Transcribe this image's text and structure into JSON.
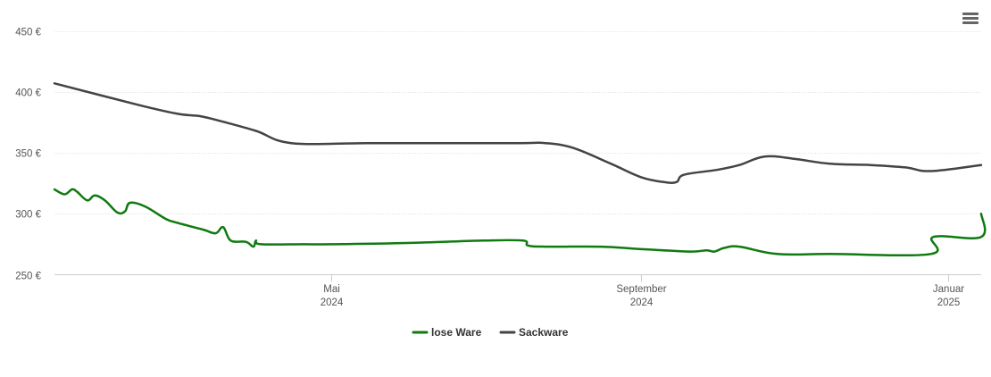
{
  "chart_data": {
    "type": "line",
    "y_tick_labels": [
      "450 €",
      "400 €",
      "350 €",
      "300 €",
      "250 €"
    ],
    "y_tick_values": [
      450,
      400,
      350,
      300,
      250
    ],
    "ylim": [
      250,
      460
    ],
    "xlim": [
      "2024-01-12",
      "2025-01-14"
    ],
    "x_ticks": [
      {
        "date": "2024-05-01",
        "month": "Mai",
        "year": "2024"
      },
      {
        "date": "2024-09-01",
        "month": "September",
        "year": "2024"
      },
      {
        "date": "2025-01-01",
        "month": "Januar",
        "year": "2025"
      }
    ],
    "legend_position": "bottom-center",
    "grid": true,
    "series": [
      {
        "name": "lose Ware",
        "color": "#0f7a10",
        "points": [
          [
            "2024-01-12",
            320
          ],
          [
            "2024-01-16",
            316
          ],
          [
            "2024-01-19",
            320
          ],
          [
            "2024-01-21",
            318
          ],
          [
            "2024-01-25",
            311
          ],
          [
            "2024-01-28",
            315
          ],
          [
            "2024-02-01",
            311
          ],
          [
            "2024-02-06",
            301
          ],
          [
            "2024-02-09",
            302
          ],
          [
            "2024-02-11",
            309
          ],
          [
            "2024-02-17",
            306
          ],
          [
            "2024-02-25",
            296
          ],
          [
            "2024-02-29",
            293
          ],
          [
            "2024-03-11",
            287
          ],
          [
            "2024-03-16",
            284
          ],
          [
            "2024-03-19",
            289
          ],
          [
            "2024-03-22",
            278
          ],
          [
            "2024-03-28",
            277
          ],
          [
            "2024-03-31",
            273
          ],
          [
            "2024-04-01",
            278
          ],
          [
            "2024-04-03",
            275
          ],
          [
            "2024-04-20",
            275
          ],
          [
            "2024-05-01",
            275
          ],
          [
            "2024-05-31",
            276
          ],
          [
            "2024-06-30",
            278
          ],
          [
            "2024-07-16",
            278
          ],
          [
            "2024-07-18",
            274
          ],
          [
            "2024-07-25",
            273
          ],
          [
            "2024-08-16",
            273
          ],
          [
            "2024-09-01",
            271
          ],
          [
            "2024-09-20",
            269
          ],
          [
            "2024-09-27",
            270
          ],
          [
            "2024-09-30",
            269
          ],
          [
            "2024-10-04",
            272
          ],
          [
            "2024-10-10",
            273
          ],
          [
            "2024-10-25",
            267
          ],
          [
            "2024-11-15",
            267
          ],
          [
            "2024-12-25",
            267
          ],
          [
            "2024-12-26",
            281
          ],
          [
            "2025-01-14",
            281
          ],
          [
            "2025-01-14",
            300
          ]
        ]
      },
      {
        "name": "Sackware",
        "color": "#434348",
        "points": [
          [
            "2024-01-12",
            407
          ],
          [
            "2024-02-15",
            389
          ],
          [
            "2024-03-01",
            382
          ],
          [
            "2024-03-10",
            380
          ],
          [
            "2024-03-18",
            376
          ],
          [
            "2024-04-01",
            368
          ],
          [
            "2024-04-15",
            358
          ],
          [
            "2024-05-15",
            358
          ],
          [
            "2024-06-15",
            358
          ],
          [
            "2024-07-15",
            358
          ],
          [
            "2024-07-25",
            358
          ],
          [
            "2024-08-05",
            354
          ],
          [
            "2024-08-20",
            341
          ],
          [
            "2024-09-01",
            330
          ],
          [
            "2024-09-10",
            326
          ],
          [
            "2024-09-15",
            326
          ],
          [
            "2024-09-18",
            332
          ],
          [
            "2024-10-01",
            336
          ],
          [
            "2024-10-10",
            340
          ],
          [
            "2024-10-20",
            347
          ],
          [
            "2024-11-01",
            345
          ],
          [
            "2024-11-15",
            341
          ],
          [
            "2024-12-01",
            340
          ],
          [
            "2024-12-15",
            338
          ],
          [
            "2024-12-25",
            335
          ],
          [
            "2025-01-14",
            340
          ]
        ]
      }
    ]
  }
}
